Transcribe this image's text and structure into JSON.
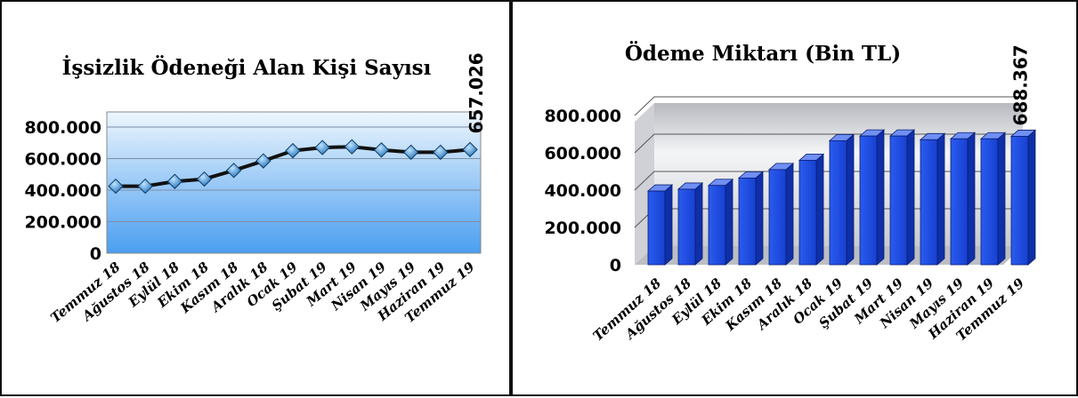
{
  "chart_data": [
    {
      "type": "line",
      "title": "İşsizlik Ödeneği Alan Kişi Sayısı",
      "categories": [
        "Temmuz 18",
        "Ağustos 18",
        "Eylül 18",
        "Ekim 18",
        "Kasım 18",
        "Aralık 18",
        "Ocak 19",
        "Şubat 19",
        "Mart 19",
        "Nisan 19",
        "Mayıs 19",
        "Haziran 19",
        "Temmuz 19"
      ],
      "values": [
        425000,
        425000,
        455000,
        470000,
        525000,
        585000,
        650000,
        670000,
        675000,
        655000,
        640000,
        640000,
        657026
      ],
      "y_tick_labels": [
        "0",
        "200.000",
        "400.000",
        "600.000",
        "800.000"
      ],
      "ylim": [
        0,
        800000
      ],
      "data_labels": [
        {
          "index": 12,
          "text": "657.026"
        }
      ],
      "grid": true,
      "legend": "none",
      "colors": {
        "line": "#111111",
        "marker": "#2b8fd6",
        "plot_top": "#e9f3fc",
        "plot_bottom": "#4a9ef0"
      }
    },
    {
      "type": "bar",
      "title": "Ödeme Miktarı (Bin TL)",
      "categories": [
        "Temmuz 18",
        "Ağustos 18",
        "Eylül 18",
        "Ekim 18",
        "Kasım 18",
        "Aralık 18",
        "Ocak 19",
        "Şubat 19",
        "Mart 19",
        "Nisan 19",
        "Mayıs 19",
        "Haziran 19",
        "Temmuz 19"
      ],
      "values": [
        395000,
        405000,
        425000,
        465000,
        510000,
        560000,
        665000,
        690000,
        690000,
        670000,
        675000,
        675000,
        688367
      ],
      "y_tick_labels": [
        "0",
        "200.000",
        "400.000",
        "600.000",
        "800.000"
      ],
      "ylim": [
        0,
        800000
      ],
      "data_labels": [
        {
          "index": 12,
          "text": "688.367"
        }
      ],
      "grid": true,
      "legend": "none",
      "colors": {
        "bar": "#1f4fe6",
        "bar_side": "#0f2fa8",
        "bar_top": "#6f8ff5",
        "wall": "#d9dbe0"
      }
    }
  ]
}
